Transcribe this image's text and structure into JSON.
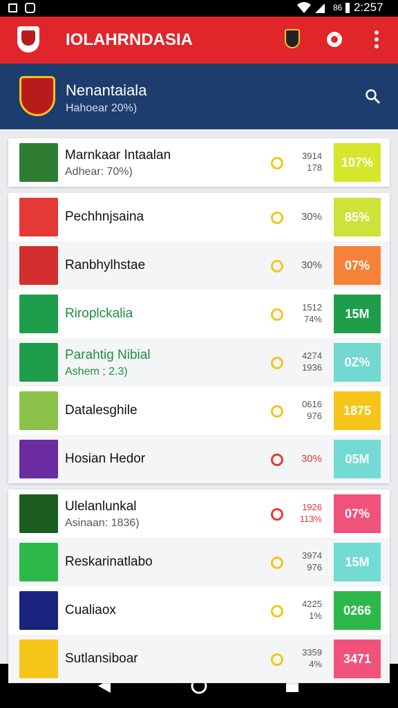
{
  "status_bar": {
    "signal": "86",
    "time": "2:257"
  },
  "app_bar": {
    "title": "IOLAHRNDASIA"
  },
  "header": {
    "title": "Nenantaiala",
    "subtitle": "Hahoear 20%)"
  },
  "cards": [
    {
      "rows": [
        {
          "name": "Marnkaar Intaalan",
          "subtitle": "Adhear: 70%)",
          "stats": [
            "3914",
            "178"
          ],
          "badge": "107%",
          "badge_color": "#d6e62c",
          "logo_color": "#2e7d32"
        }
      ]
    },
    {
      "rows": [
        {
          "name": "Pechhnjsaina",
          "stats": [
            "30%"
          ],
          "badge": "85%",
          "badge_color": "#cde23a",
          "logo_color": "#e53935"
        },
        {
          "name": "Ranbhylhstae",
          "stats": [
            "30%"
          ],
          "badge": "07%",
          "badge_color": "#f6823a",
          "logo_color": "#d32f2f"
        },
        {
          "name": "Riroplckalia",
          "name_color": "#1e8e3e",
          "stats": [
            "1512",
            "74%"
          ],
          "badge": "15M",
          "badge_color": "#1e9e4a",
          "logo_color": "#1e9e4a"
        },
        {
          "name": "Parahtig Nibial",
          "subtitle": "Ashem ; 2.3)",
          "name_color": "#1e8e3e",
          "stats": [
            "4274",
            "1936"
          ],
          "badge": "0Z%",
          "badge_color": "#72d8d0",
          "logo_color": "#1e9e4a"
        },
        {
          "name": "Datalesghile",
          "stats": [
            "0616",
            "976"
          ],
          "badge": "1875",
          "badge_color": "#f5c51a",
          "logo_color": "#8bc34a"
        },
        {
          "name": "Hosian Hedor",
          "stats": [
            "30%"
          ],
          "stat_color": "#e53935",
          "badge": "05M",
          "badge_color": "#74dbd4",
          "logo_color": "#6a2ca0"
        }
      ]
    },
    {
      "rows": [
        {
          "name": "Ulelanlunkal",
          "subtitle": "Asinaan: 1836)",
          "stats": [
            "1926",
            "113%"
          ],
          "stat_color": "#e53935",
          "badge": "07%",
          "badge_color": "#f0527c",
          "logo_color": "#1b5e20"
        },
        {
          "name": "Reskarinatlabo",
          "stats": [
            "3974",
            "976"
          ],
          "badge": "15M",
          "badge_color": "#74dbd4",
          "logo_color": "#2db94a"
        },
        {
          "name": "Cualiaox",
          "stats": [
            "4225",
            "1%"
          ],
          "badge": "0266",
          "badge_color": "#2db94a",
          "logo_color": "#1a237e"
        },
        {
          "name": "Sutlansiboar",
          "stats": [
            "3359",
            "4%"
          ],
          "badge": "3471",
          "badge_color": "#f0527c",
          "logo_color": "#f5c51a"
        }
      ]
    }
  ]
}
